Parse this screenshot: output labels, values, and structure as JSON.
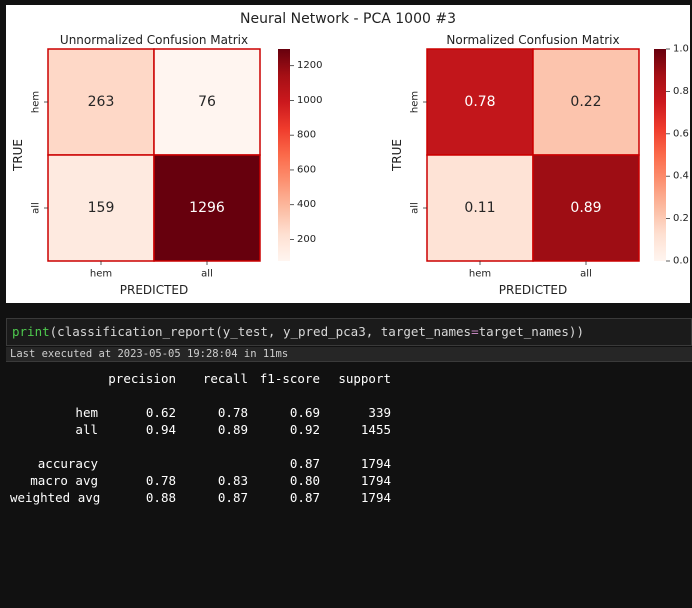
{
  "chart_data": [
    {
      "type": "heatmap",
      "title": "Unnormalized Confusion Matrix",
      "xlabel": "PREDICTED",
      "ylabel": "TRUE",
      "x_categories": [
        "hem",
        "all"
      ],
      "y_categories": [
        "hem",
        "all"
      ],
      "values": [
        [
          263,
          76
        ],
        [
          159,
          1296
        ]
      ],
      "annotations": [
        "263",
        "76",
        "159",
        "1296"
      ],
      "colorbar": {
        "colormap": "Reds",
        "min": 76,
        "max": 1296,
        "ticks": [
          200,
          400,
          600,
          800,
          1000,
          1200
        ],
        "tick_labels": [
          "200",
          "400",
          "600",
          "800",
          "1000",
          "1200"
        ]
      }
    },
    {
      "type": "heatmap",
      "title": "Normalized Confusion Matrix",
      "xlabel": "PREDICTED",
      "ylabel": "TRUE",
      "x_categories": [
        "hem",
        "all"
      ],
      "y_categories": [
        "hem",
        "all"
      ],
      "values": [
        [
          0.78,
          0.22
        ],
        [
          0.11,
          0.89
        ]
      ],
      "annotations": [
        "0.78",
        "0.22",
        "0.11",
        "0.89"
      ],
      "colorbar": {
        "colormap": "Reds",
        "min": 0.0,
        "max": 1.0,
        "ticks": [
          0.0,
          0.2,
          0.4,
          0.6,
          0.8,
          1.0
        ],
        "tick_labels": [
          "0.0",
          "0.2",
          "0.4",
          "0.6",
          "0.8",
          "1.0"
        ]
      }
    }
  ],
  "figure": {
    "suptitle": "Neural Network - PCA 1000 #3"
  },
  "code": {
    "fn": "print",
    "open": "(",
    "call": "classification_report(y_test, y_pred_pca3, target_names",
    "op": "=",
    "rest": "target_names))"
  },
  "exec_status": "Last executed at 2023-05-05 19:28:04 in 11ms",
  "report": {
    "headers": [
      "precision",
      "recall",
      "f1-score",
      "support"
    ],
    "rows": [
      {
        "label": "hem",
        "precision": "0.62",
        "recall": "0.78",
        "f1": "0.69",
        "support": "339"
      },
      {
        "label": "all",
        "precision": "0.94",
        "recall": "0.89",
        "f1": "0.92",
        "support": "1455"
      },
      {
        "label": "accuracy",
        "precision": "",
        "recall": "",
        "f1": "0.87",
        "support": "1794"
      },
      {
        "label": "macro avg",
        "precision": "0.78",
        "recall": "0.83",
        "f1": "0.80",
        "support": "1794"
      },
      {
        "label": "weighted avg",
        "precision": "0.88",
        "recall": "0.87",
        "f1": "0.87",
        "support": "1794"
      }
    ]
  }
}
